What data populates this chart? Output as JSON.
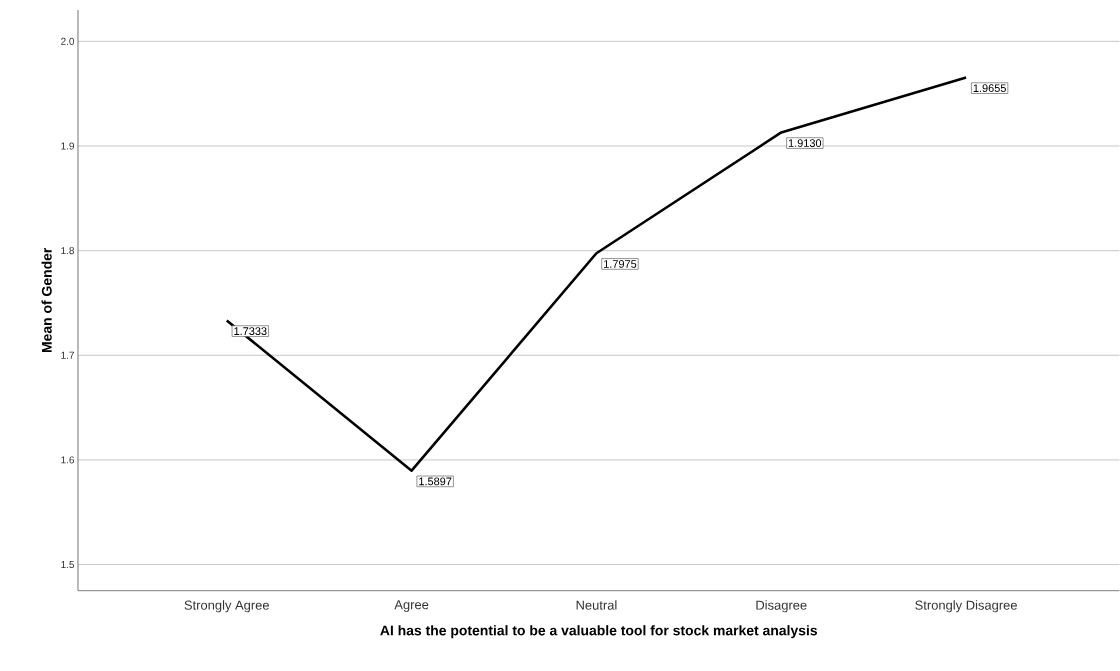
{
  "chart_data": {
    "type": "line",
    "xlabel": "AI has the potential to be a valuable tool for stock market analysis",
    "ylabel": "Mean of Gender",
    "categories": [
      "Strongly Agree",
      "Agree",
      "Neutral",
      "Disagree",
      "Strongly Disagree"
    ],
    "series": [
      {
        "color": "#000000",
        "values": [
          1.7333,
          1.5897,
          1.7975,
          1.913,
          1.9655
        ],
        "value_labels": [
          "1.7333",
          "1.5897",
          "1.7975",
          "1.9130",
          "1.9655"
        ]
      }
    ],
    "ylim": [
      1.475,
      2.03
    ],
    "yticks": [
      {
        "value": 1.5,
        "label": "1.5"
      },
      {
        "value": 1.6,
        "label": "1.6"
      },
      {
        "value": 1.7,
        "label": "1.7"
      },
      {
        "value": 1.8,
        "label": "1.8"
      },
      {
        "value": 1.9,
        "label": "1.9"
      },
      {
        "value": 2.0,
        "label": "2.0"
      }
    ],
    "grid": "y",
    "line_style": "solid"
  }
}
